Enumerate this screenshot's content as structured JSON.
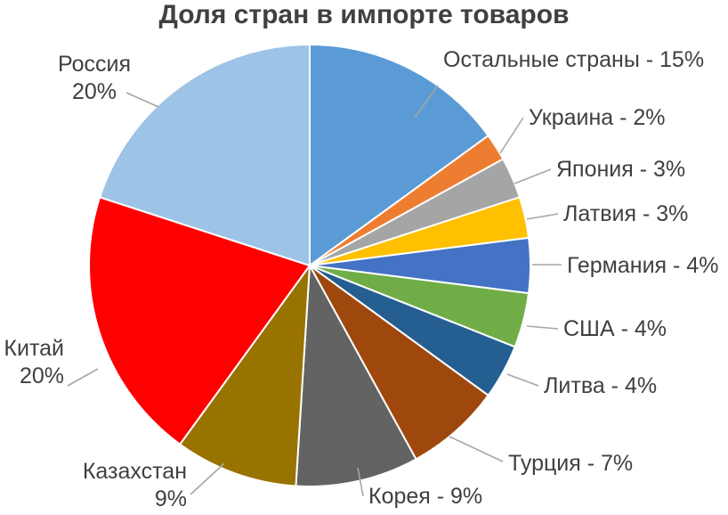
{
  "chart_data": {
    "type": "pie",
    "title": "Доля стран в импорте товаров",
    "slices": [
      {
        "name": "Остальные страны",
        "value": 15,
        "label": "Остальные страны - 15%",
        "color": "#5b9bd5"
      },
      {
        "name": "Украина",
        "value": 2,
        "label": "Украина - 2%",
        "color": "#ed7d31"
      },
      {
        "name": "Япония",
        "value": 3,
        "label": "Япония - 3%",
        "color": "#a5a5a5"
      },
      {
        "name": "Латвия",
        "value": 3,
        "label": "Латвия - 3%",
        "color": "#ffc000"
      },
      {
        "name": "Германия",
        "value": 4,
        "label": "Германия - 4%",
        "color": "#4472c4"
      },
      {
        "name": "США",
        "value": 4,
        "label": "США - 4%",
        "color": "#70ad47"
      },
      {
        "name": "Литва",
        "value": 4,
        "label": "Литва - 4%",
        "color": "#255e91"
      },
      {
        "name": "Турция",
        "value": 7,
        "label": "Турция - 7%",
        "color": "#9e480e"
      },
      {
        "name": "Корея",
        "value": 9,
        "label": "Корея - 9%",
        "color": "#636363"
      },
      {
        "name": "Казахстан",
        "value": 9,
        "label": [
          "Казахстан",
          "9%"
        ],
        "color": "#997300"
      },
      {
        "name": "Китай",
        "value": 20,
        "label": [
          "Китай",
          "20%"
        ],
        "color": "#ff0000"
      },
      {
        "name": "Россия",
        "value": 20,
        "label": [
          "Россия",
          "20%"
        ],
        "color": "#9dc3e6"
      }
    ]
  }
}
